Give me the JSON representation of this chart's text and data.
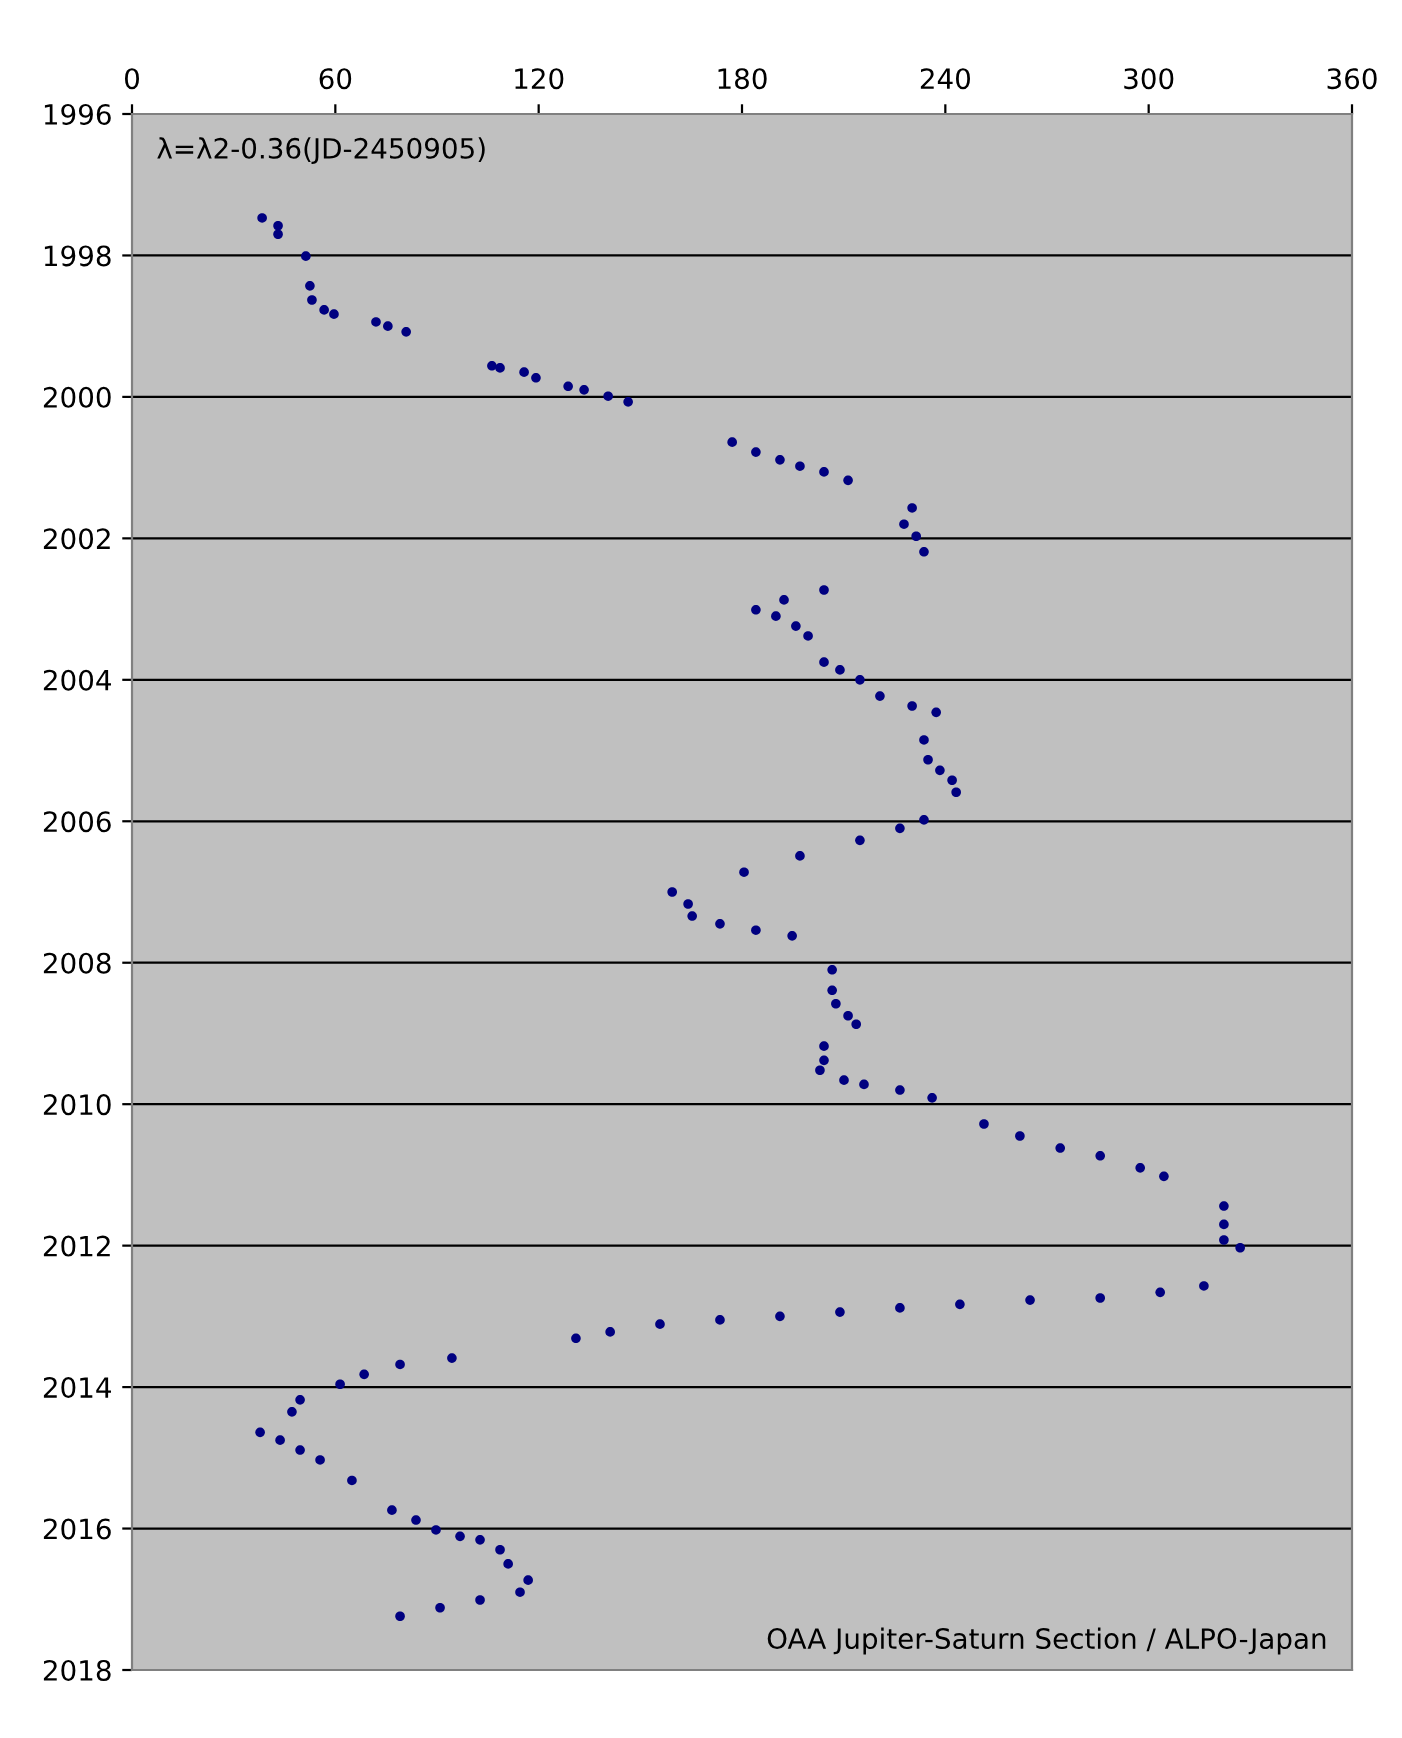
{
  "chart_data": {
    "type": "scatter",
    "annotations": [
      "λ=λ2-0.36(JD-2450905)",
      "OAA Jupiter-Saturn Section / ALPO-Japan"
    ],
    "x": [
      38.4,
      43.1,
      43.1,
      51.3,
      52.5,
      53.1,
      56.7,
      59.6,
      72.0,
      75.5,
      80.9,
      106.2,
      108.6,
      115.7,
      119.2,
      128.7,
      133.4,
      140.5,
      146.4,
      177.1,
      184.1,
      191.2,
      197.1,
      204.2,
      211.3,
      230.2,
      227.8,
      231.4,
      233.7,
      204.2,
      192.4,
      184.1,
      190.0,
      195.9,
      199.5,
      204.2,
      208.9,
      214.8,
      220.7,
      230.2,
      237.3,
      233.7,
      234.9,
      238.4,
      242.0,
      243.2,
      233.7,
      226.6,
      214.8,
      197.1,
      180.6,
      159.4,
      164.1,
      165.3,
      173.5,
      184.1,
      194.8,
      206.6,
      206.6,
      207.7,
      211.3,
      213.7,
      204.2,
      204.2,
      203.0,
      210.1,
      216.0,
      226.6,
      236.1,
      251.4,
      262.0,
      273.9,
      285.7,
      297.5,
      304.5,
      322.2,
      322.2,
      322.2,
      327.0,
      316.3,
      303.4,
      285.7,
      265.0,
      244.3,
      226.6,
      208.9,
      191.2,
      173.5,
      155.8,
      141.1,
      131.0,
      94.4,
      79.1,
      68.5,
      61.4,
      49.6,
      47.2,
      37.8,
      43.7,
      49.6,
      55.5,
      64.9,
      76.7,
      83.8,
      89.7,
      96.8,
      102.7,
      108.6,
      111.0,
      116.9,
      114.5,
      102.7,
      90.9,
      79.1
    ],
    "series": [
      {
        "color": "#000080",
        "values": [
          1997.47,
          1997.58,
          1997.7,
          1998.01,
          1998.43,
          1998.63,
          1998.77,
          1998.83,
          1998.94,
          1999.0,
          1999.08,
          1999.56,
          1999.59,
          1999.65,
          1999.73,
          1999.85,
          1999.9,
          1999.99,
          2000.07,
          2000.64,
          2000.78,
          2000.89,
          2000.98,
          2001.06,
          2001.18,
          2001.57,
          2001.8,
          2001.97,
          2002.19,
          2002.73,
          2002.87,
          2003.01,
          2003.1,
          2003.24,
          2003.38,
          2003.75,
          2003.86,
          2004.0,
          2004.23,
          2004.37,
          2004.46,
          2004.85,
          2005.13,
          2005.28,
          2005.42,
          2005.59,
          2005.98,
          2006.1,
          2006.27,
          2006.49,
          2006.72,
          2007.0,
          2007.17,
          2007.34,
          2007.45,
          2007.54,
          2007.62,
          2008.1,
          2008.39,
          2008.58,
          2008.75,
          2008.87,
          2009.18,
          2009.38,
          2009.52,
          2009.66,
          2009.72,
          2009.8,
          2009.91,
          2010.28,
          2010.45,
          2010.62,
          2010.73,
          2010.9,
          2011.02,
          2011.44,
          2011.7,
          2011.92,
          2012.03,
          2012.57,
          2012.66,
          2012.74,
          2012.77,
          2012.83,
          2012.88,
          2012.94,
          2013.0,
          2013.05,
          2013.11,
          2013.22,
          2013.31,
          2013.59,
          2013.68,
          2013.82,
          2013.96,
          2014.18,
          2014.35,
          2014.64,
          2014.75,
          2014.89,
          2015.03,
          2015.32,
          2015.74,
          2015.88,
          2016.02,
          2016.11,
          2016.16,
          2016.3,
          2016.5,
          2016.73,
          2016.9,
          2017.01,
          2017.12,
          2017.24
        ]
      }
    ],
    "xlim": [
      0,
      360
    ],
    "xticks": [
      0,
      60,
      120,
      180,
      240,
      300,
      360
    ],
    "ylim": [
      2018,
      1996
    ],
    "yticks": [
      1996,
      1998,
      2000,
      2002,
      2004,
      2006,
      2008,
      2010,
      2012,
      2014,
      2016,
      2018
    ],
    "grid": "y",
    "marker": "circle"
  }
}
